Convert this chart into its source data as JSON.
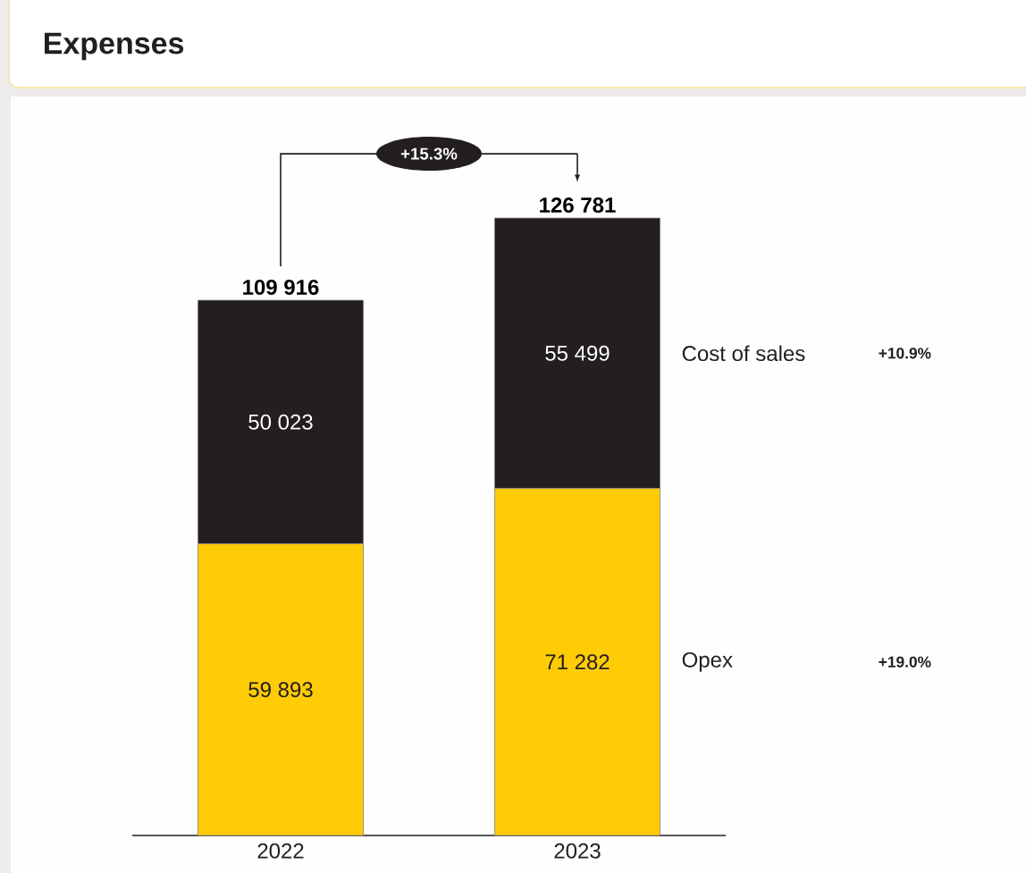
{
  "chart_data": {
    "type": "bar",
    "title": "Expenses",
    "categories": [
      "2022",
      "2023"
    ],
    "stacked": true,
    "series": [
      {
        "name": "Opex",
        "color": "#ffcb05",
        "values": [
          59893,
          71282
        ],
        "value_labels": [
          "59 893",
          "71 282"
        ]
      },
      {
        "name": "Cost of sales",
        "color": "#231f20",
        "values": [
          50023,
          55499
        ],
        "value_labels": [
          "50 023",
          "55 499"
        ]
      }
    ],
    "totals": [
      "109 916",
      "126 781"
    ],
    "annotations": [
      "+15.3%",
      "+19.0%",
      "+10.9%"
    ]
  }
}
